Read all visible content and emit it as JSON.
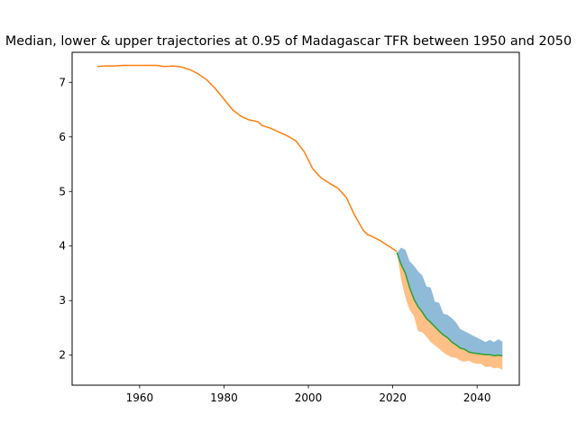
{
  "chart_data": {
    "type": "line",
    "title": "Median, lower & upper trajectories at 0.95 of Madagascar TFR between 1950 and 2050",
    "xlabel": "",
    "ylabel": "",
    "xlim": [
      1944,
      2050
    ],
    "ylim": [
      1.45,
      7.55
    ],
    "x_ticks": [
      1960,
      1980,
      2000,
      2020,
      2040
    ],
    "y_ticks": [
      2,
      3,
      4,
      5,
      6,
      7
    ],
    "grid": false,
    "legend": "none",
    "colors": {
      "upper_band": "#1f77b4",
      "lower_band": "#ff7f0e",
      "history": "#ff7f0e",
      "median": "#2ca02c"
    },
    "history": {
      "x": [
        1950,
        1952,
        1954,
        1956,
        1958,
        1960,
        1962,
        1964,
        1966,
        1968,
        1970,
        1972,
        1974,
        1976,
        1978,
        1980,
        1982,
        1984,
        1986,
        1988,
        1989,
        1991,
        1993,
        1995,
        1997,
        1999,
        2001,
        2003,
        2005,
        2007,
        2009,
        2011,
        2013,
        2014,
        2015,
        2017,
        2019,
        2021
      ],
      "y": [
        7.29,
        7.3,
        7.3,
        7.31,
        7.31,
        7.31,
        7.31,
        7.31,
        7.29,
        7.3,
        7.28,
        7.23,
        7.15,
        7.04,
        6.88,
        6.69,
        6.5,
        6.38,
        6.31,
        6.28,
        6.21,
        6.16,
        6.09,
        6.02,
        5.93,
        5.73,
        5.42,
        5.25,
        5.15,
        5.06,
        4.89,
        4.56,
        4.29,
        4.21,
        4.18,
        4.1,
        4.0,
        3.9
      ]
    },
    "projection": {
      "x": [
        2021,
        2022,
        2023,
        2024,
        2025,
        2026,
        2027,
        2028,
        2029,
        2030,
        2031,
        2032,
        2033,
        2034,
        2035,
        2036,
        2037,
        2038,
        2039,
        2040,
        2041,
        2042,
        2043,
        2044,
        2045,
        2046
      ],
      "median": [
        3.88,
        3.66,
        3.5,
        3.24,
        3.03,
        2.89,
        2.79,
        2.67,
        2.6,
        2.52,
        2.44,
        2.37,
        2.32,
        2.24,
        2.19,
        2.13,
        2.11,
        2.06,
        2.04,
        2.03,
        2.02,
        2.01,
        2.01,
        1.99,
        2.0,
        1.99
      ],
      "upper": [
        3.88,
        3.97,
        3.93,
        3.72,
        3.64,
        3.54,
        3.46,
        3.26,
        3.24,
        2.98,
        2.96,
        2.76,
        2.74,
        2.68,
        2.6,
        2.48,
        2.44,
        2.4,
        2.36,
        2.32,
        2.28,
        2.24,
        2.28,
        2.24,
        2.29,
        2.25
      ],
      "lower": [
        3.88,
        3.38,
        3.06,
        2.83,
        2.72,
        2.44,
        2.42,
        2.34,
        2.24,
        2.18,
        2.12,
        2.05,
        2.0,
        1.96,
        1.95,
        1.9,
        1.88,
        1.9,
        1.86,
        1.84,
        1.84,
        1.78,
        1.79,
        1.76,
        1.77,
        1.73
      ]
    }
  }
}
